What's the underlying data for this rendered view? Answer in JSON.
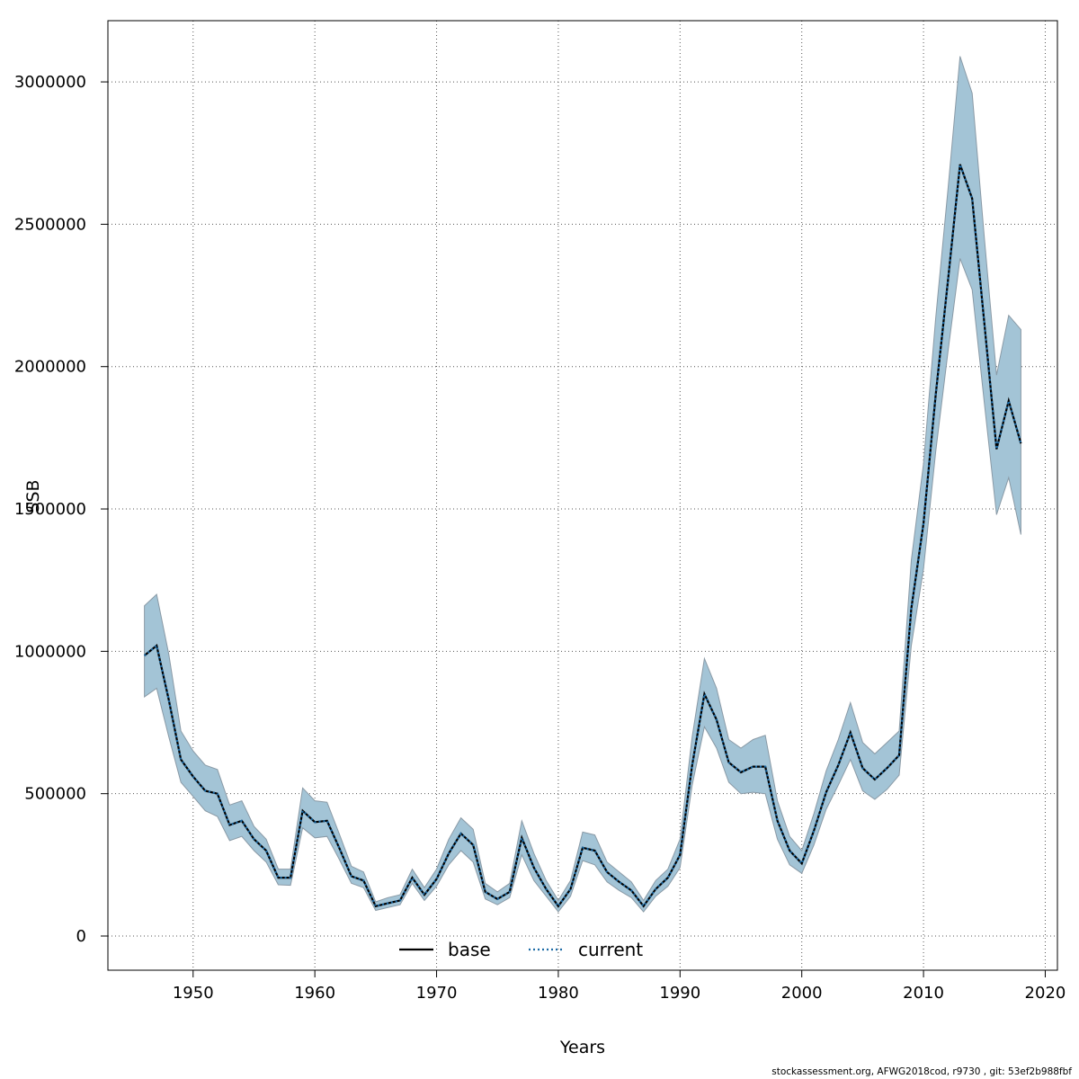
{
  "chart_data": {
    "type": "line",
    "xlabel": "Years",
    "ylabel": "SSB",
    "xlim": [
      1943,
      2021
    ],
    "ylim": [
      -120000,
      3215000
    ],
    "xticks": [
      1950,
      1960,
      1970,
      1980,
      1990,
      2000,
      2010,
      2020
    ],
    "yticks": [
      0,
      500000,
      1000000,
      1500000,
      2000000,
      2500000,
      3000000
    ],
    "grid": true,
    "legend_position": "bottom-center",
    "colors": {
      "band": "#a3c4d6",
      "band_edge": "#8a9aa6",
      "base": "#000000",
      "current": "#1b6aa5"
    },
    "x": [
      1946,
      1947,
      1948,
      1949,
      1950,
      1951,
      1952,
      1953,
      1954,
      1955,
      1956,
      1957,
      1958,
      1959,
      1960,
      1961,
      1962,
      1963,
      1964,
      1965,
      1966,
      1967,
      1968,
      1969,
      1970,
      1971,
      1972,
      1973,
      1974,
      1975,
      1976,
      1977,
      1978,
      1979,
      1980,
      1981,
      1982,
      1983,
      1984,
      1985,
      1986,
      1987,
      1988,
      1989,
      1990,
      1991,
      1992,
      1993,
      1994,
      1995,
      1996,
      1997,
      1998,
      1999,
      2000,
      2001,
      2002,
      2003,
      2004,
      2005,
      2006,
      2007,
      2008,
      2009,
      2010,
      2011,
      2012,
      2013,
      2014,
      2015,
      2016,
      2017,
      2018
    ],
    "series": [
      {
        "name": "base",
        "values": [
          985000,
          1020000,
          830000,
          620000,
          560000,
          510000,
          500000,
          390000,
          405000,
          340000,
          300000,
          205000,
          205000,
          440000,
          400000,
          405000,
          310000,
          210000,
          195000,
          105000,
          115000,
          125000,
          205000,
          145000,
          200000,
          290000,
          360000,
          320000,
          155000,
          130000,
          155000,
          345000,
          240000,
          165000,
          105000,
          165000,
          310000,
          300000,
          225000,
          190000,
          160000,
          105000,
          165000,
          205000,
          285000,
          600000,
          850000,
          760000,
          610000,
          575000,
          595000,
          595000,
          405000,
          300000,
          255000,
          370000,
          505000,
          600000,
          715000,
          590000,
          550000,
          590000,
          635000,
          1150000,
          1450000,
          1900000,
          2300000,
          2710000,
          2590000,
          2150000,
          1710000,
          1880000,
          1730000
        ],
        "lower": [
          840000,
          870000,
          700000,
          540000,
          490000,
          440000,
          420000,
          335000,
          350000,
          300000,
          260000,
          180000,
          178000,
          380000,
          345000,
          350000,
          270000,
          185000,
          170000,
          90000,
          100000,
          110000,
          185000,
          125000,
          175000,
          250000,
          300000,
          260000,
          130000,
          110000,
          135000,
          285000,
          195000,
          140000,
          85000,
          140000,
          265000,
          250000,
          190000,
          160000,
          135000,
          85000,
          140000,
          175000,
          240000,
          530000,
          735000,
          660000,
          540000,
          500000,
          505000,
          500000,
          340000,
          250000,
          220000,
          320000,
          445000,
          530000,
          620000,
          510000,
          480000,
          515000,
          565000,
          1020000,
          1290000,
          1700000,
          2050000,
          2380000,
          2270000,
          1870000,
          1480000,
          1610000,
          1410000
        ],
        "upper": [
          1160000,
          1200000,
          990000,
          720000,
          650000,
          600000,
          585000,
          460000,
          475000,
          385000,
          340000,
          235000,
          235000,
          520000,
          475000,
          470000,
          360000,
          245000,
          225000,
          120000,
          135000,
          145000,
          235000,
          170000,
          235000,
          340000,
          415000,
          375000,
          185000,
          155000,
          185000,
          405000,
          290000,
          195000,
          125000,
          195000,
          365000,
          355000,
          260000,
          225000,
          190000,
          125000,
          195000,
          235000,
          340000,
          700000,
          975000,
          870000,
          690000,
          660000,
          690000,
          705000,
          475000,
          350000,
          300000,
          430000,
          580000,
          690000,
          820000,
          680000,
          640000,
          680000,
          720000,
          1320000,
          1660000,
          2170000,
          2620000,
          3090000,
          2960000,
          2450000,
          1970000,
          2180000,
          2130000
        ]
      },
      {
        "name": "current",
        "values": [
          985000,
          1020000,
          830000,
          620000,
          560000,
          510000,
          500000,
          390000,
          405000,
          340000,
          300000,
          205000,
          205000,
          440000,
          400000,
          405000,
          310000,
          210000,
          195000,
          105000,
          115000,
          125000,
          205000,
          145000,
          200000,
          290000,
          360000,
          320000,
          155000,
          130000,
          155000,
          345000,
          240000,
          165000,
          105000,
          165000,
          310000,
          300000,
          225000,
          190000,
          160000,
          105000,
          165000,
          205000,
          285000,
          600000,
          850000,
          760000,
          610000,
          575000,
          595000,
          595000,
          405000,
          300000,
          255000,
          370000,
          505000,
          600000,
          715000,
          590000,
          550000,
          590000,
          635000,
          1150000,
          1450000,
          1900000,
          2300000,
          2710000,
          2590000,
          2150000,
          1710000,
          1880000,
          1730000
        ]
      }
    ]
  },
  "footer": "stockassessment.org, AFWG2018cod, r9730 , git: 53ef2b988fbf"
}
